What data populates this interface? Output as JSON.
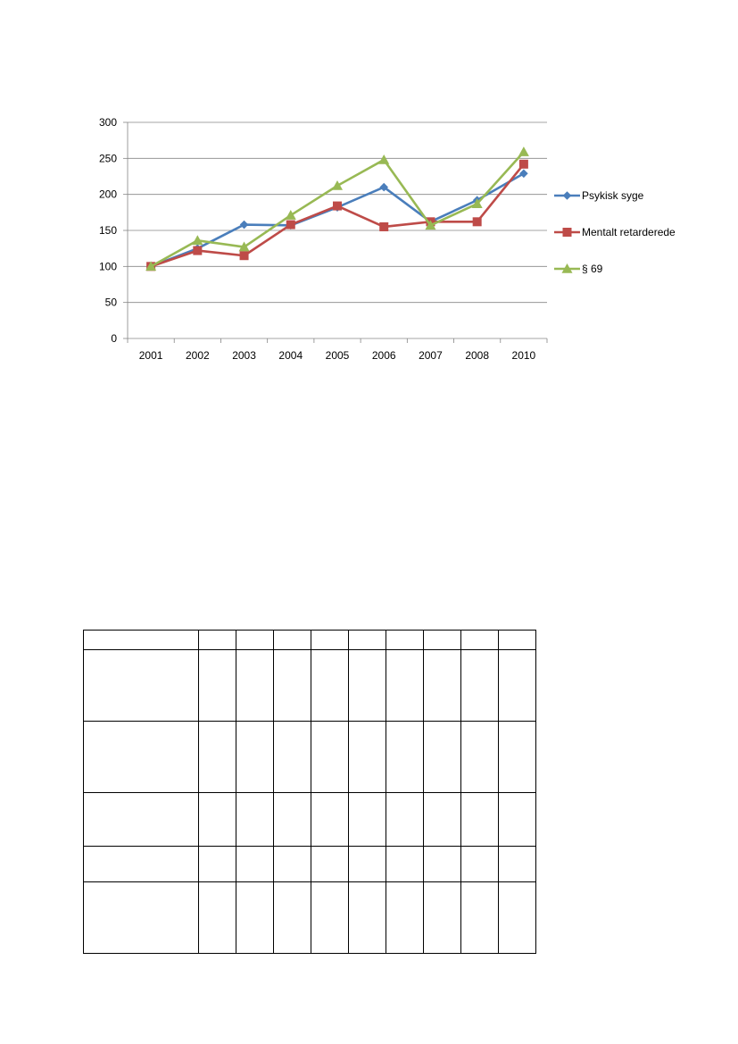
{
  "chart_data": {
    "type": "line",
    "categories": [
      "2001",
      "2002",
      "2003",
      "2004",
      "2005",
      "2006",
      "2007",
      "2008",
      "2010"
    ],
    "ylim": [
      0,
      300
    ],
    "yticks": [
      0,
      50,
      100,
      150,
      200,
      250,
      300
    ],
    "grid": true,
    "legend_position": "right",
    "series": [
      {
        "name": "Psykisk syge",
        "marker": "diamond",
        "color": "#4a7ebb",
        "values": [
          100,
          125,
          158,
          157,
          182,
          210,
          162,
          192,
          229
        ]
      },
      {
        "name": "Mentalt retarderede",
        "marker": "square",
        "color": "#be4b48",
        "values": [
          100,
          122,
          115,
          158,
          184,
          155,
          162,
          162,
          242
        ]
      },
      {
        "name": "§ 69",
        "marker": "triangle",
        "color": "#98b954",
        "values": [
          100,
          136,
          127,
          171,
          212,
          248,
          157,
          187,
          259
        ]
      }
    ]
  },
  "table": {
    "columns": 10,
    "rows": 5
  }
}
